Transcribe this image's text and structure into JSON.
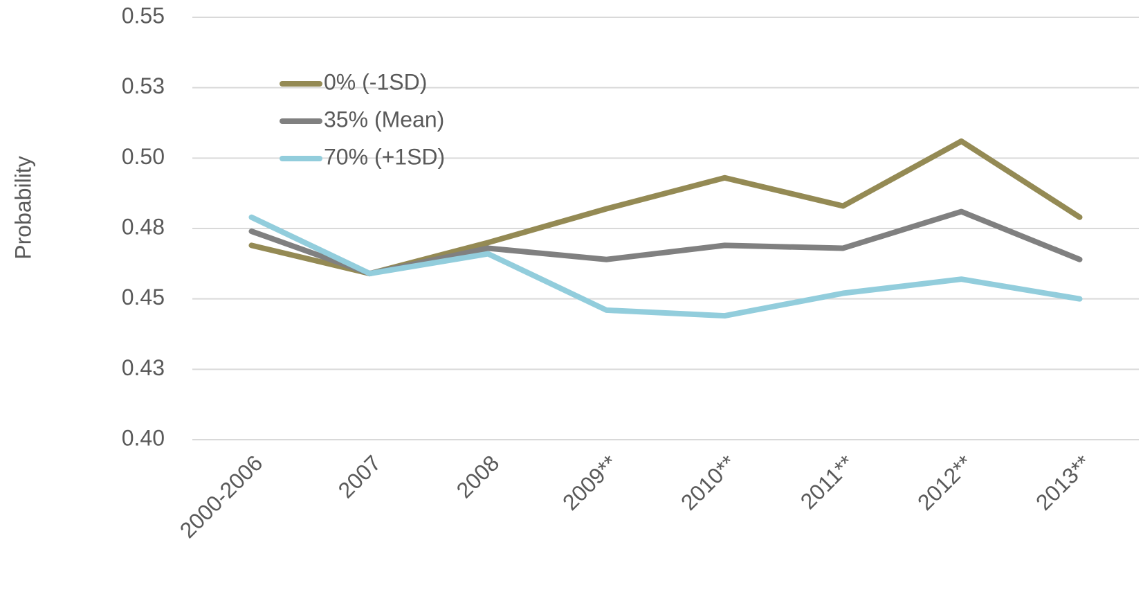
{
  "chart_data": {
    "type": "line",
    "ylabel": "Probability",
    "categories": [
      "2000-2006",
      "2007",
      "2008",
      "2009**",
      "2010**",
      "2011**",
      "2012**",
      "2013**"
    ],
    "series": [
      {
        "name": "0% (-1SD)",
        "color": "#948a54",
        "values": [
          0.469,
          0.459,
          0.47,
          0.482,
          0.493,
          0.483,
          0.506,
          0.479
        ]
      },
      {
        "name": "35% (Mean)",
        "color": "#808080",
        "values": [
          0.474,
          0.459,
          0.468,
          0.464,
          0.469,
          0.468,
          0.481,
          0.464
        ]
      },
      {
        "name": "70% (+1SD)",
        "color": "#92cddc",
        "values": [
          0.479,
          0.459,
          0.466,
          0.446,
          0.444,
          0.452,
          0.457,
          0.45
        ]
      }
    ],
    "ylim": [
      0.4,
      0.55
    ],
    "yticks": [
      {
        "value": 0.4,
        "label": "0.40"
      },
      {
        "value": 0.425,
        "label": "0.43"
      },
      0.45,
      {
        "value": 0.475,
        "label": "0.48"
      },
      {
        "value": 0.5,
        "label": "0.50"
      },
      {
        "value": 0.525,
        "label": "0.53"
      },
      0.55
    ],
    "grid": true,
    "legend": "upper left"
  }
}
